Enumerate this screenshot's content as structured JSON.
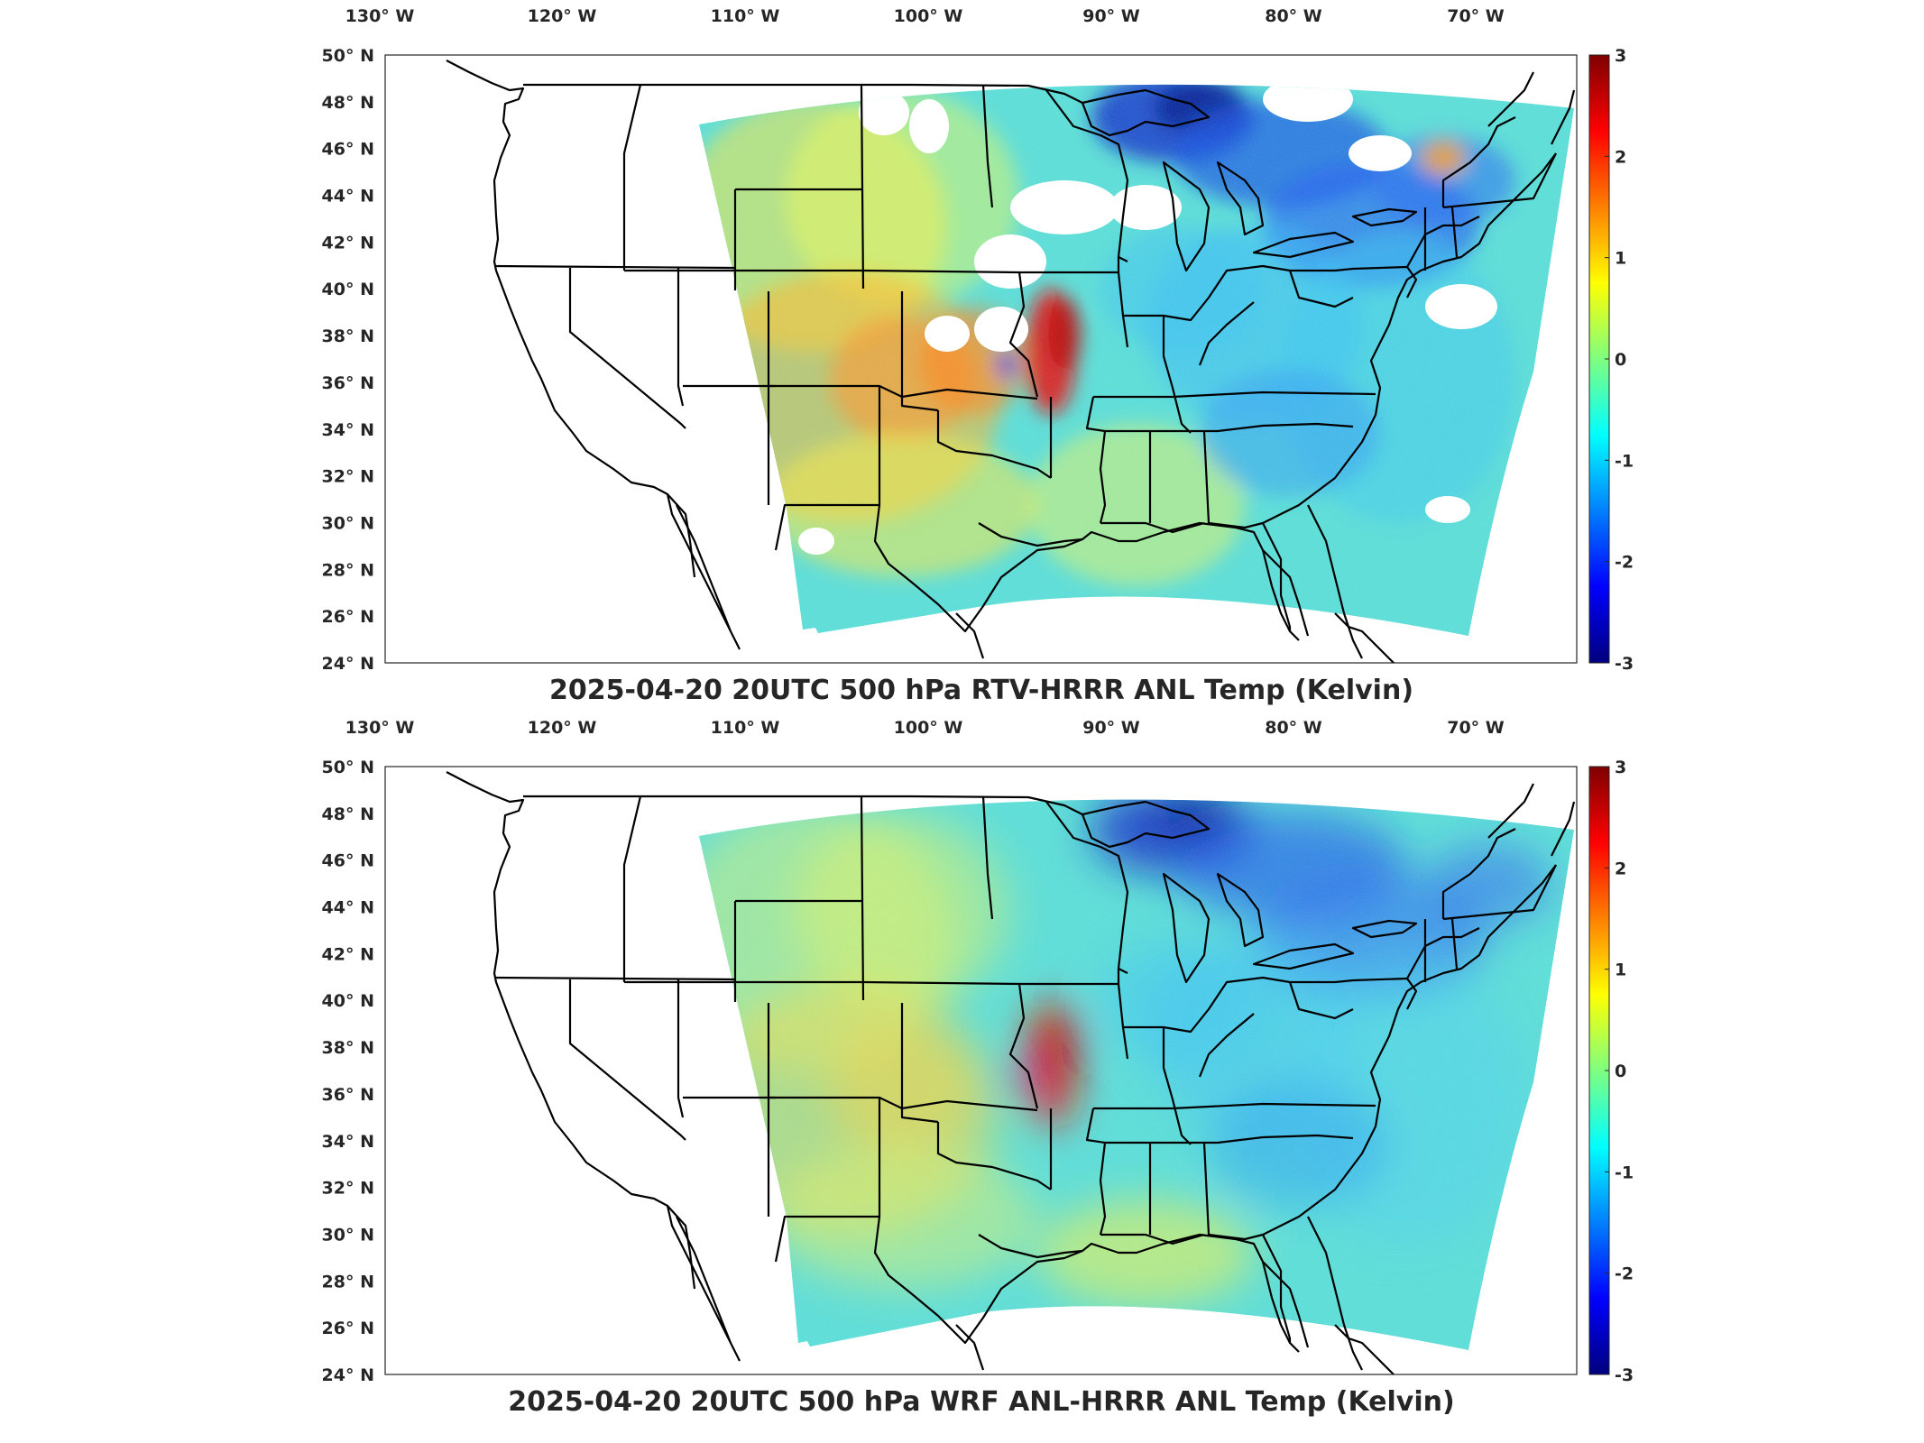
{
  "colorbar": {
    "min": -3,
    "max": 3,
    "ticks": [
      "3",
      "2",
      "1",
      "0",
      "-1",
      "-2",
      "-3"
    ],
    "colormap": "jet"
  },
  "panels": [
    {
      "id": "top",
      "title": "2025-04-20 20UTC 500 hPa RTV-HRRR ANL Temp (Kelvin)",
      "lon_ticks": [
        "130° W",
        "120° W",
        "110° W",
        "100° W",
        "90° W",
        "80° W",
        "70° W"
      ],
      "lat_ticks": [
        "50° N",
        "48° N",
        "46° N",
        "44° N",
        "42° N",
        "40° N",
        "38° N",
        "36° N",
        "34° N",
        "32° N",
        "30° N",
        "28° N",
        "26° N",
        "24° N"
      ],
      "field_style": "blocky with white missing-data patches",
      "warm_anomaly_area": "Kansas/Missouri border and southwest",
      "cold_anomaly_area": "Lake Superior and northeast"
    },
    {
      "id": "bottom",
      "title": "2025-04-20 20UTC 500 hPa WRF ANL-HRRR ANL Temp (Kelvin)",
      "lon_ticks": [
        "130° W",
        "120° W",
        "110° W",
        "100° W",
        "90° W",
        "80° W",
        "70° W"
      ],
      "lat_ticks": [
        "50° N",
        "48° N",
        "46° N",
        "44° N",
        "42° N",
        "40° N",
        "38° N",
        "36° N",
        "34° N",
        "32° N",
        "30° N",
        "28° N",
        "26° N",
        "24° N"
      ],
      "field_style": "smooth continuous field",
      "warm_anomaly_area": "Kansas/Missouri border",
      "cold_anomaly_area": "Lake Superior and northeast"
    }
  ]
}
